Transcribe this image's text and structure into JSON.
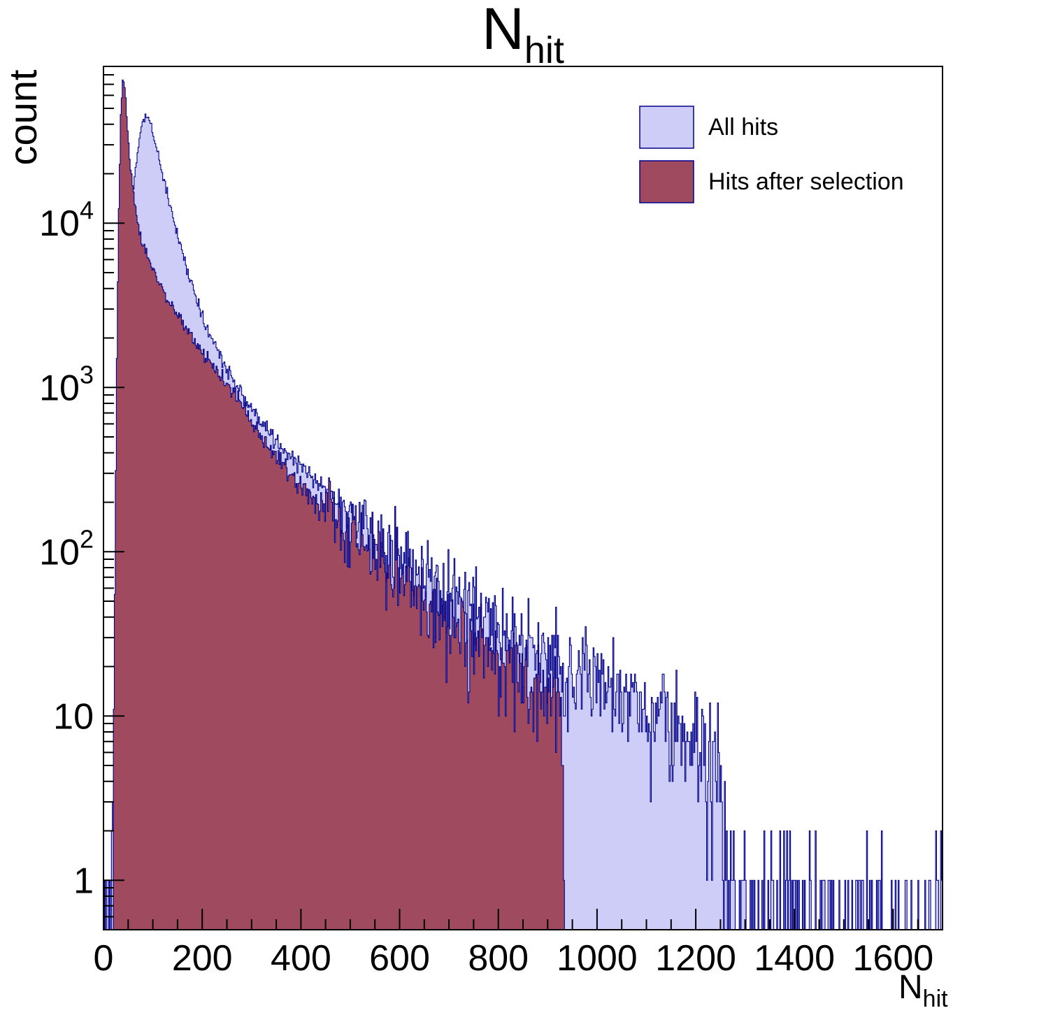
{
  "chart_data": {
    "type": "bar",
    "subtype": "overlaid-step-histograms-log-y",
    "title": "N_hit",
    "title_main": "N",
    "title_sub": "hit",
    "xlabel": "N_hit",
    "xlabel_main": "N",
    "xlabel_sub": "hit",
    "ylabel": "count",
    "x_range": [
      0,
      1700
    ],
    "y_scale": "log",
    "y_range": [
      0.5,
      90000
    ],
    "x_ticks": [
      0,
      200,
      400,
      600,
      800,
      1000,
      1200,
      1400,
      1600
    ],
    "x_minor_step": 50,
    "y_decade_ticks": [
      1,
      10,
      100,
      1000,
      10000
    ],
    "grid": false,
    "legend_position": "top-right",
    "bin_width": 2,
    "frame_color": "#000000",
    "series": [
      {
        "name": "All hits",
        "fill": "#cdcdf8",
        "stroke": "#00008b",
        "peak_x": 85,
        "peak_count": 44000,
        "envelope": [
          [
            3,
            0.01
          ],
          [
            6,
            1.2
          ],
          [
            10,
            1.8
          ],
          [
            15,
            1.2
          ],
          [
            22,
            1.5
          ],
          [
            30,
            8
          ],
          [
            38,
            120
          ],
          [
            46,
            1500
          ],
          [
            54,
            7000
          ],
          [
            62,
            18000
          ],
          [
            72,
            32000
          ],
          [
            82,
            44000
          ],
          [
            90,
            43000
          ],
          [
            100,
            35000
          ],
          [
            115,
            23000
          ],
          [
            135,
            12500
          ],
          [
            160,
            6800
          ],
          [
            185,
            3600
          ],
          [
            210,
            2300
          ],
          [
            240,
            1500
          ],
          [
            270,
            1000
          ],
          [
            300,
            740
          ],
          [
            330,
            560
          ],
          [
            360,
            440
          ],
          [
            400,
            330
          ],
          [
            440,
            255
          ],
          [
            480,
            195
          ],
          [
            520,
            152
          ],
          [
            560,
            118
          ],
          [
            600,
            92
          ],
          [
            640,
            74
          ],
          [
            680,
            58
          ],
          [
            720,
            48
          ],
          [
            760,
            40
          ],
          [
            800,
            34
          ],
          [
            840,
            29
          ],
          [
            880,
            25
          ],
          [
            920,
            22
          ],
          [
            960,
            19
          ],
          [
            1000,
            16.5
          ],
          [
            1040,
            14
          ],
          [
            1080,
            11.5
          ],
          [
            1120,
            9.5
          ],
          [
            1160,
            8.5
          ],
          [
            1200,
            7
          ],
          [
            1230,
            5
          ],
          [
            1252,
            3.2
          ],
          [
            1266,
            1.2
          ],
          [
            1290,
            0.7
          ],
          [
            1330,
            0.55
          ],
          [
            1370,
            0.5
          ],
          [
            1420,
            0.45
          ],
          [
            1470,
            0.42
          ],
          [
            1520,
            0.3
          ],
          [
            1560,
            0.28
          ],
          [
            1600,
            0.3
          ],
          [
            1640,
            0.26
          ],
          [
            1680,
            0.4
          ],
          [
            1698,
            1.0
          ]
        ]
      },
      {
        "name": "Hits after selection",
        "fill": "#9f4a5e",
        "stroke": "#00008b",
        "peak_x": 40,
        "peak_count": 72000,
        "cutoff_x": 934,
        "envelope": [
          [
            15,
            0.01
          ],
          [
            19,
            1.5
          ],
          [
            23,
            60
          ],
          [
            27,
            1500
          ],
          [
            31,
            12000
          ],
          [
            35,
            45000
          ],
          [
            39,
            72000
          ],
          [
            43,
            65000
          ],
          [
            48,
            40000
          ],
          [
            54,
            23000
          ],
          [
            61,
            14500
          ],
          [
            70,
            9800
          ],
          [
            82,
            7300
          ],
          [
            95,
            5800
          ],
          [
            110,
            4600
          ],
          [
            130,
            3500
          ],
          [
            155,
            2600
          ],
          [
            185,
            1900
          ],
          [
            215,
            1450
          ],
          [
            250,
            1050
          ],
          [
            285,
            760
          ],
          [
            320,
            500
          ],
          [
            360,
            360
          ],
          [
            400,
            240
          ],
          [
            440,
            195
          ],
          [
            480,
            150
          ],
          [
            520,
            118
          ],
          [
            560,
            92
          ],
          [
            600,
            66
          ],
          [
            640,
            54
          ],
          [
            680,
            42
          ],
          [
            720,
            34
          ],
          [
            760,
            27
          ],
          [
            800,
            23
          ],
          [
            840,
            19
          ],
          [
            875,
            16
          ],
          [
            900,
            14
          ],
          [
            915,
            12.5
          ],
          [
            925,
            11
          ],
          [
            930,
            9
          ],
          [
            933,
            3
          ],
          [
            936,
            0.005
          ],
          [
            1700,
            0.003
          ]
        ]
      }
    ]
  },
  "legend": {
    "items": [
      {
        "label": "All hits"
      },
      {
        "label": "Hits after selection"
      }
    ]
  }
}
